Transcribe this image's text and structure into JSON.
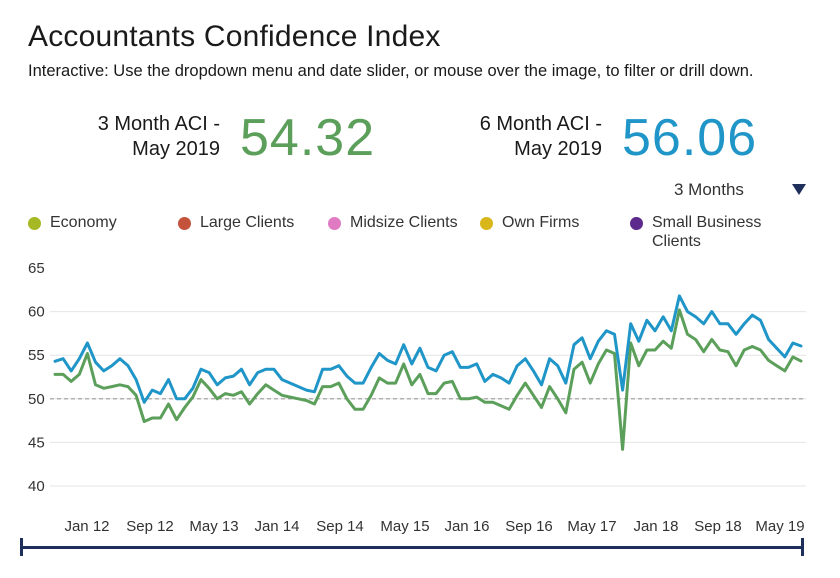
{
  "header": {
    "title": "Accountants Confidence Index",
    "subtitle": "Interactive: Use the dropdown menu and date slider, or mouse over the image, to filter or drill down."
  },
  "kpis": {
    "three_month": {
      "label_line1": "3 Month ACI -",
      "label_line2": "May 2019",
      "value": "54.32",
      "color": "#5b9f5b"
    },
    "six_month": {
      "label_line1": "6 Month ACI -",
      "label_line2": "May 2019",
      "value": "56.06",
      "color": "#1f95c8"
    }
  },
  "dropdown": {
    "selected": "3 Months",
    "arrow_icon": "triangle-down-icon"
  },
  "legend": [
    {
      "label": "Economy",
      "color": "#a6b824"
    },
    {
      "label": "Large Clients",
      "color": "#c5523a"
    },
    {
      "label": "Midsize Clients",
      "color": "#e07ac3"
    },
    {
      "label": "Own Firms",
      "color": "#d9b61a"
    },
    {
      "label": "Small Business Clients",
      "color": "#5b2a8c"
    }
  ],
  "chart_data": {
    "type": "line",
    "title": "",
    "xlabel": "",
    "ylabel": "",
    "ylim": [
      38,
      66
    ],
    "yticks": [
      65,
      60,
      55,
      50,
      45,
      40
    ],
    "xticks": [
      "Jan 12",
      "Sep 12",
      "May 13",
      "Jan 14",
      "Sep 14",
      "May 15",
      "Jan 16",
      "Sep 16",
      "May 17",
      "Jan 18",
      "Sep 18",
      "May 19"
    ],
    "reference_line": 50,
    "grid": "horizontal",
    "series": [
      {
        "name": "6 Month ACI",
        "color": "#1f95c8",
        "values": [
          54.3,
          54.6,
          53.2,
          54.6,
          56.4,
          54.2,
          53.2,
          53.8,
          54.6,
          53.8,
          52.2,
          49.6,
          51.0,
          50.6,
          52.2,
          50.0,
          50.0,
          51.2,
          53.4,
          53.0,
          51.6,
          52.4,
          52.6,
          53.4,
          51.6,
          53.0,
          53.4,
          53.4,
          52.2,
          51.8,
          51.4,
          51.0,
          50.8,
          53.4,
          53.4,
          53.8,
          52.6,
          51.8,
          51.8,
          53.6,
          55.2,
          54.4,
          54.0,
          56.2,
          54.0,
          55.8,
          53.6,
          53.2,
          55.0,
          55.4,
          53.6,
          53.6,
          54.0,
          52.0,
          52.8,
          52.4,
          51.8,
          53.8,
          54.6,
          53.2,
          51.6,
          54.6,
          53.8,
          51.8,
          56.2,
          57.0,
          54.6,
          56.6,
          57.8,
          57.4,
          51.0,
          58.6,
          56.6,
          59.0,
          57.8,
          59.4,
          57.8,
          61.8,
          60.0,
          59.4,
          58.6,
          60.0,
          58.6,
          58.6,
          57.4,
          58.6,
          59.6,
          59.0,
          56.8,
          55.8,
          54.8,
          56.4,
          56.06
        ]
      },
      {
        "name": "3 Month ACI",
        "color": "#5b9f5b",
        "values": [
          52.8,
          52.8,
          52.0,
          52.8,
          55.2,
          51.6,
          51.2,
          51.4,
          51.6,
          51.4,
          50.4,
          47.4,
          47.8,
          47.8,
          49.4,
          47.6,
          49.0,
          50.2,
          52.2,
          51.2,
          50.0,
          50.6,
          50.4,
          50.8,
          49.4,
          50.6,
          51.6,
          51.0,
          50.4,
          50.2,
          50.0,
          49.8,
          49.4,
          51.4,
          51.4,
          51.8,
          50.0,
          48.8,
          48.8,
          50.4,
          52.4,
          51.8,
          51.8,
          54.0,
          51.6,
          52.8,
          50.6,
          50.6,
          51.8,
          52.0,
          50.0,
          50.0,
          50.2,
          49.6,
          49.6,
          49.2,
          48.8,
          50.4,
          51.8,
          50.4,
          49.0,
          51.4,
          50.0,
          48.4,
          53.4,
          54.2,
          51.8,
          54.0,
          55.6,
          55.2,
          44.2,
          56.4,
          53.8,
          55.6,
          55.6,
          56.6,
          55.8,
          60.2,
          57.4,
          56.8,
          55.4,
          56.8,
          55.6,
          55.4,
          53.8,
          55.6,
          56.0,
          55.6,
          54.4,
          53.8,
          53.2,
          54.8,
          54.32
        ]
      }
    ]
  },
  "slider": {
    "range_start": "Jan 12",
    "range_end": "May 19"
  }
}
